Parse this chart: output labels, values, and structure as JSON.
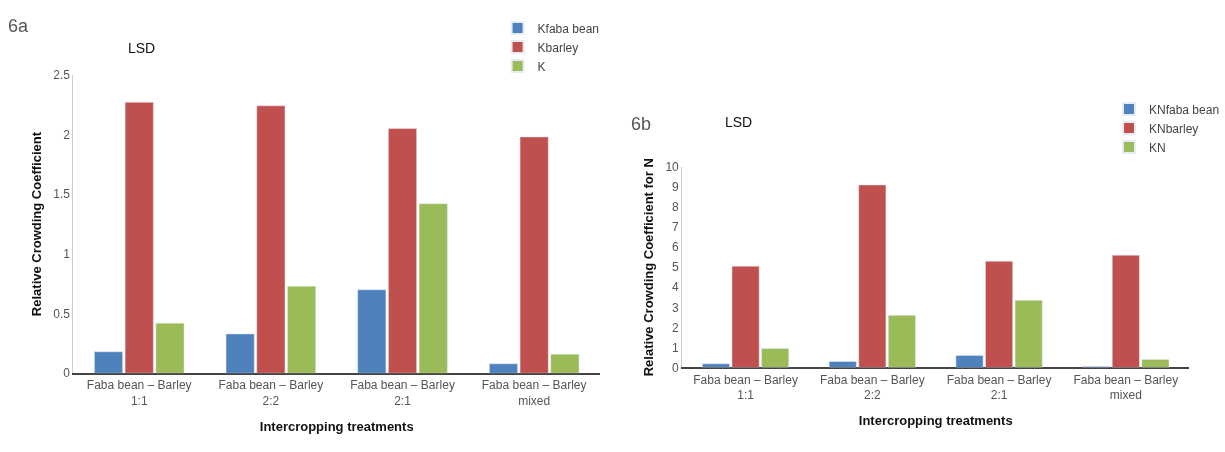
{
  "chart_data": [
    {
      "type": "bar",
      "title": "6a",
      "xlabel": "Intercropping treatments",
      "ylabel": "Relative Crowding Coefficient",
      "categories": [
        "Faba bean – Barley\n1:1",
        "Faba bean – Barley\n2:2",
        "Faba bean – Barley\n2:1",
        "Faba bean – Barley\nmixed"
      ],
      "series": [
        {
          "name": "Kfaba bean",
          "color": "#4f81bd",
          "values": [
            0.18,
            0.33,
            0.7,
            0.08
          ]
        },
        {
          "name": "Kbarley",
          "color": "#c0504d",
          "values": [
            2.27,
            2.24,
            2.05,
            1.98
          ]
        },
        {
          "name": "K",
          "color": "#9bbb59",
          "values": [
            0.42,
            0.73,
            1.42,
            0.16
          ]
        }
      ],
      "ylim": [
        0,
        2.5
      ],
      "yticks": [
        0,
        0.5,
        1,
        1.5,
        2,
        2.5
      ],
      "grid": false,
      "legend": "top right",
      "annotations": [
        "LSD"
      ]
    },
    {
      "type": "bar",
      "title": "6b",
      "xlabel": "Intercropping treatments",
      "ylabel": "Relative Crowding Coefficient for N",
      "categories": [
        "Faba bean – Barley\n1:1",
        "Faba bean – Barley\n2:2",
        "Faba bean – Barley\n2:1",
        "Faba bean – Barley\nmixed"
      ],
      "series": [
        {
          "name": "KNfaba bean",
          "color": "#4f81bd",
          "values": [
            0.18,
            0.3,
            0.6,
            0.05
          ]
        },
        {
          "name": "KNbarley",
          "color": "#c0504d",
          "values": [
            5.05,
            9.1,
            5.3,
            5.6
          ]
        },
        {
          "name": "KN",
          "color": "#9bbb59",
          "values": [
            0.95,
            2.6,
            3.35,
            0.4
          ]
        }
      ],
      "ylim": [
        0,
        10
      ],
      "yticks": [
        0,
        1,
        2,
        3,
        4,
        5,
        6,
        7,
        8,
        9,
        10
      ],
      "grid": false,
      "legend": "top right",
      "annotations": [
        "LSD"
      ]
    }
  ]
}
